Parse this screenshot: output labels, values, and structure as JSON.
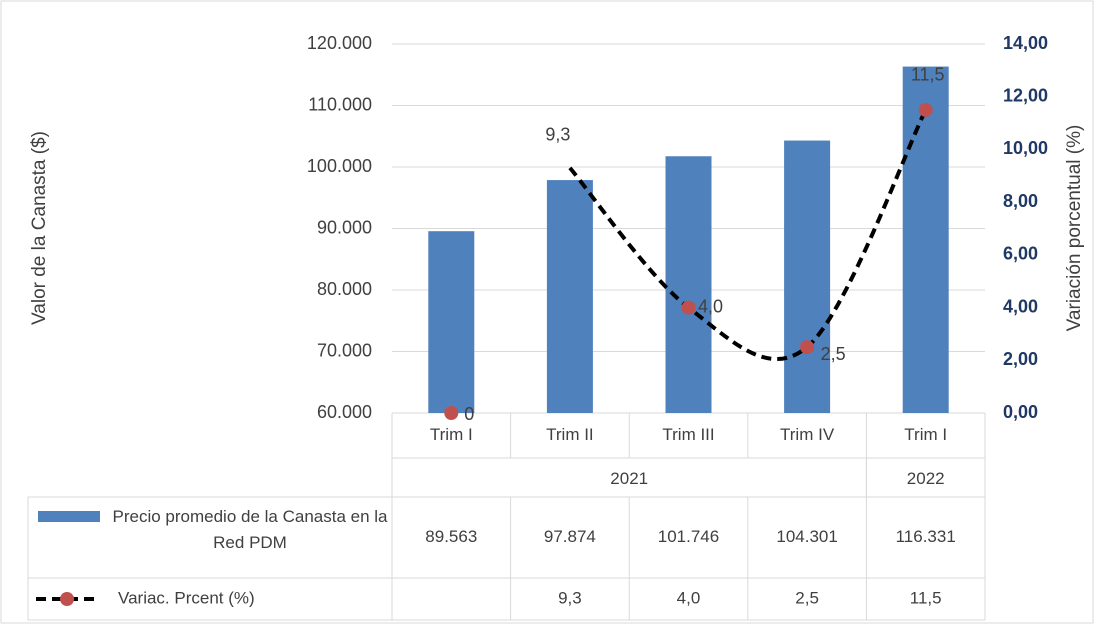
{
  "chart_data": {
    "type": "bar-line-table",
    "ylabel": "Valor de la Canasta ($)",
    "y2label": "Variación porcentual (%)",
    "categories": [
      "Trim I",
      "Trim II",
      "Trim III",
      "Trim IV",
      "Trim I"
    ],
    "year_groups": [
      {
        "label": "2021",
        "count": 4
      },
      {
        "label": "2022",
        "count": 1
      }
    ],
    "series": [
      {
        "name": "Precio promedio de la Canasta en la Red PDM",
        "type": "bar",
        "color": "#4f81bd",
        "values": [
          89563,
          97874,
          101746,
          104301,
          116331
        ],
        "value_labels": [
          "89.563",
          "97.874",
          "101.746",
          "104.301",
          "116.331"
        ]
      },
      {
        "name": "Variac. Prcent (%)",
        "type": "line",
        "axis": "y2",
        "color": "#000000",
        "marker_color": "#c0504d",
        "values": [
          0,
          9.3,
          4.0,
          2.5,
          11.5
        ],
        "value_labels": [
          "0",
          "9,3",
          "4,0",
          "2,5",
          "11,5"
        ]
      }
    ],
    "ylim": [
      60000,
      120000
    ],
    "yticks": [
      {
        "value": 60000,
        "label": "60.000"
      },
      {
        "value": 70000,
        "label": "70.000"
      },
      {
        "value": 80000,
        "label": "80.000"
      },
      {
        "value": 90000,
        "label": "90.000"
      },
      {
        "value": 100000,
        "label": "100.000"
      },
      {
        "value": 110000,
        "label": "110.000"
      },
      {
        "value": 120000,
        "label": "120.000"
      }
    ],
    "y2lim": [
      0,
      14
    ],
    "y2ticks": [
      {
        "value": 0,
        "label": "0,00"
      },
      {
        "value": 2,
        "label": "2,00"
      },
      {
        "value": 4,
        "label": "4,00"
      },
      {
        "value": 6,
        "label": "6,00"
      },
      {
        "value": 8,
        "label": "8,00"
      },
      {
        "value": 10,
        "label": "10,00"
      },
      {
        "value": 12,
        "label": "12,00"
      },
      {
        "value": 14,
        "label": "14,00"
      }
    ],
    "grid": true
  }
}
